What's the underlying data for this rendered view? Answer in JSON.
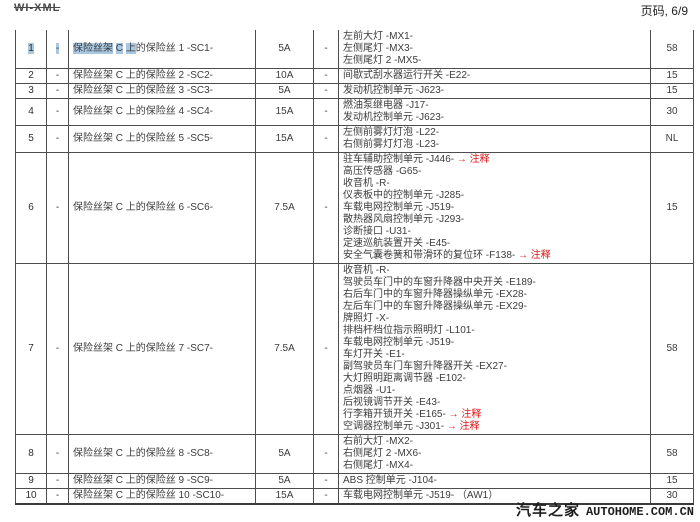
{
  "page": {
    "doc_ref": "WI-XML",
    "page_label": "页码, 6/9"
  },
  "watermark": {
    "cn": "汽车之家",
    "en": "AUTOHOME.COM.CN"
  },
  "colors": {
    "highlight": "#a9c7e1",
    "note_red": "#dc1414",
    "border": "#4d4d4d"
  },
  "note_suffix": " → 注释",
  "table": {
    "rows": [
      {
        "num": "1",
        "num_hl": true,
        "dash": "-",
        "dash_hl": true,
        "desc_segments": [
          {
            "text": "保险丝架",
            "hl": true
          },
          {
            "text": " ",
            "hl": false
          },
          {
            "text": "C",
            "hl": true
          },
          {
            "text": " ",
            "hl": false
          },
          {
            "text": "上",
            "hl": true
          },
          {
            "text": "的保险丝 1 -SC1-",
            "hl": false
          }
        ],
        "amp": "5A",
        "dash2": "-",
        "components": [
          {
            "text": "左前大灯 -MX1-",
            "note": false
          },
          {
            "text": "左侧尾灯 -MX3-",
            "note": false
          },
          {
            "text": "左侧尾灯 2 -MX5-",
            "note": false
          }
        ],
        "value": "58"
      },
      {
        "num": "2",
        "dash": "-",
        "desc": "保险丝架 C 上的保险丝 2 -SC2-",
        "amp": "10A",
        "dash2": "-",
        "components": [
          {
            "text": "间歇式刮水器运行开关 -E22-",
            "note": false
          }
        ],
        "value": "15"
      },
      {
        "num": "3",
        "dash": "-",
        "desc": "保险丝架 C 上的保险丝 3 -SC3-",
        "amp": "5A",
        "dash2": "-",
        "components": [
          {
            "text": "发动机控制单元 -J623-",
            "note": false
          }
        ],
        "value": "15"
      },
      {
        "num": "4",
        "dash": "-",
        "desc": "保险丝架 C 上的保险丝 4 -SC4-",
        "amp": "15A",
        "dash2": "-",
        "components": [
          {
            "text": "燃油泵继电器 -J17-",
            "note": false
          },
          {
            "text": "发动机控制单元 -J623-",
            "note": false
          }
        ],
        "value": "30"
      },
      {
        "num": "5",
        "dash": "-",
        "desc": "保险丝架 C 上的保险丝 5 -SC5-",
        "amp": "15A",
        "dash2": "-",
        "components": [
          {
            "text": "左侧前雾灯灯泡 -L22-",
            "note": false
          },
          {
            "text": "右侧前雾灯灯泡 -L23-",
            "note": false
          }
        ],
        "value": "NL"
      },
      {
        "num": "6",
        "dash": "-",
        "desc": "保险丝架 C 上的保险丝 6 -SC6-",
        "amp": "7.5A",
        "dash2": "-",
        "components": [
          {
            "text": "驻车辅助控制单元 -J446-",
            "note": true
          },
          {
            "text": "高压传感器 -G65-",
            "note": false
          },
          {
            "text": "收音机 -R-",
            "note": false
          },
          {
            "text": "仪表板中的控制单元 -J285-",
            "note": false
          },
          {
            "text": "车载电网控制单元 -J519-",
            "note": false
          },
          {
            "text": "散热器风扇控制单元 -J293-",
            "note": false
          },
          {
            "text": "诊断接口 -U31-",
            "note": false
          },
          {
            "text": "定速巡航装置开关 -E45-",
            "note": false
          },
          {
            "text": "安全气囊卷簧和带滑环的复位环 -F138-",
            "note": true
          }
        ],
        "value": "15"
      },
      {
        "num": "7",
        "dash": "-",
        "desc": "保险丝架 C 上的保险丝 7 -SC7-",
        "amp": "7.5A",
        "dash2": "-",
        "components": [
          {
            "text": "收音机 -R-",
            "note": false
          },
          {
            "text": "驾驶员车门中的车窗升降器中央开关 -E189-",
            "note": false
          },
          {
            "text": "右后车门中的车窗升降器操纵单元 -EX28-",
            "note": false
          },
          {
            "text": "左后车门中的车窗升降器操纵单元 -EX29-",
            "note": false
          },
          {
            "text": "牌照灯 -X-",
            "note": false
          },
          {
            "text": "排档杆档位指示照明灯 -L101-",
            "note": false
          },
          {
            "text": "车载电网控制单元 -J519-",
            "note": false
          },
          {
            "text": "车灯开关 -E1-",
            "note": false
          },
          {
            "text": "副驾驶员车门车窗升降器开关 -EX27-",
            "note": false
          },
          {
            "text": "大灯照明距离调节器 -E102-",
            "note": false
          },
          {
            "text": "点烟器 -U1-",
            "note": false
          },
          {
            "text": "后视镜调节开关 -E43-",
            "note": false
          },
          {
            "text": "行李箱开锁开关 -E165-",
            "note": true
          },
          {
            "text": "空调器控制单元 -J301-",
            "note": true
          }
        ],
        "value": "58"
      },
      {
        "num": "8",
        "dash": "-",
        "desc": "保险丝架 C 上的保险丝 8 -SC8-",
        "amp": "5A",
        "dash2": "-",
        "components": [
          {
            "text": "右前大灯 -MX2-",
            "note": false
          },
          {
            "text": "右侧尾灯 2 -MX6-",
            "note": false
          },
          {
            "text": "右侧尾灯 -MX4-",
            "note": false
          }
        ],
        "value": "58"
      },
      {
        "num": "9",
        "dash": "-",
        "desc": "保险丝架 C 上的保险丝 9 -SC9-",
        "amp": "5A",
        "dash2": "-",
        "components": [
          {
            "text": "ABS 控制单元 -J104-",
            "note": false
          }
        ],
        "value": "15"
      },
      {
        "num": "10",
        "dash": "-",
        "desc": "保险丝架 C 上的保险丝 10 -SC10-",
        "amp": "15A",
        "dash2": "-",
        "components": [
          {
            "text": "车载电网控制单元 -J519- （AW1）",
            "note": false
          }
        ],
        "value": "30"
      }
    ]
  }
}
